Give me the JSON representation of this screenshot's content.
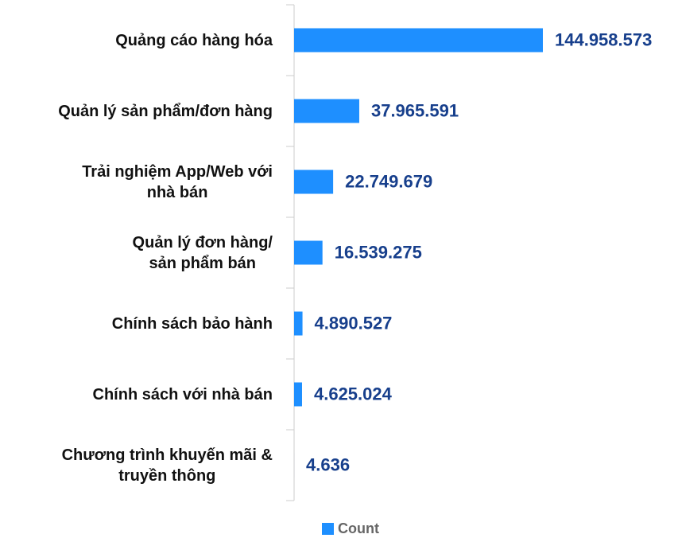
{
  "chart_data": {
    "type": "hbar",
    "categories": [
      "Quảng cáo hàng hóa",
      "Quản lý sản phẩm/đơn hàng",
      "Trải nghiệm App/Web với\nnhà bán",
      "Quản lý đơn hàng/\nsản phẩm bán",
      "Chính sách bảo hành",
      "Chính sách với nhà bán",
      "Chương trình khuyến mãi &\ntruyền thông"
    ],
    "series": [
      {
        "name": "Count",
        "color": "#1e8fff",
        "values": [
          144958573,
          37965591,
          22749679,
          16539275,
          4890527,
          4625024,
          4636
        ],
        "value_labels": [
          "144.958.573",
          "37.965.591",
          "22.749.679",
          "16.539.275",
          "4.890.527",
          "4.625.024",
          "4.636"
        ]
      }
    ],
    "legend": "bottom"
  }
}
